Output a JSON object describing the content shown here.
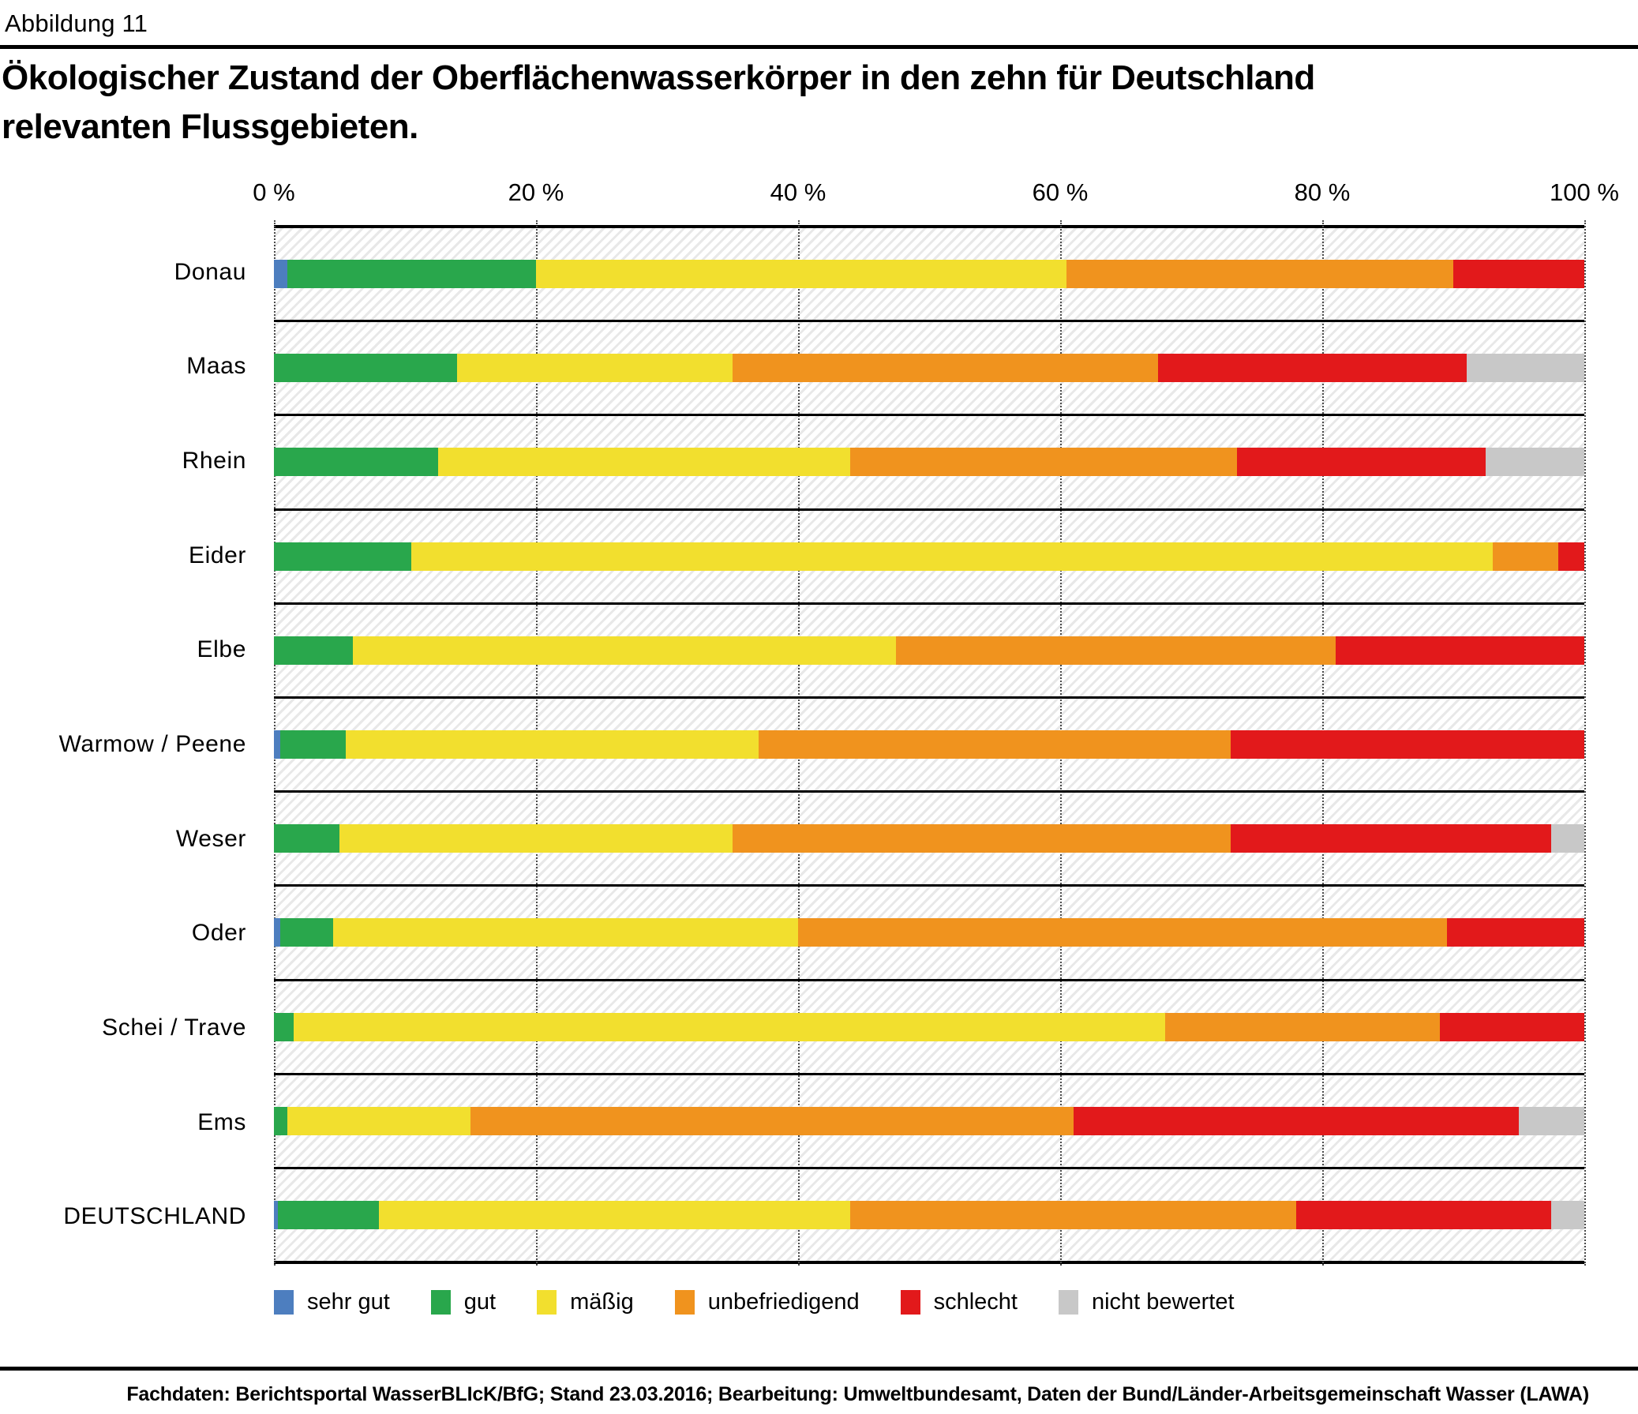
{
  "figure_label": "Abbildung 11",
  "title_line1": "Ökologischer Zustand der Oberflächenwasserkörper in den zehn für Deutschland",
  "title_line2": "relevanten Flussgebieten.",
  "footer": "Fachdaten: Berichtsportal WasserBLIcK/BfG; Stand 23.03.2016; Bearbeitung: Umweltbundesamt, Daten der Bund/Länder-Arbeitsgemeinschaft Wasser (LAWA)",
  "chart_data": {
    "type": "bar",
    "orientation": "horizontal-stacked",
    "unit": "%",
    "xlim": [
      0,
      100
    ],
    "x_ticks": [
      0,
      20,
      40,
      60,
      80,
      100
    ],
    "x_tick_labels": [
      "0 %",
      "20 %",
      "40 %",
      "60 %",
      "80 %",
      "100 %"
    ],
    "grid": "dotted-vertical",
    "legend_position": "bottom",
    "categories": [
      "Donau",
      "Maas",
      "Rhein",
      "Eider",
      "Elbe",
      "Warmow / Peene",
      "Weser",
      "Oder",
      "Schei / Trave",
      "Ems",
      "DEUTSCHLAND"
    ],
    "series": [
      {
        "name": "sehr gut",
        "color": "#4d7ebf",
        "values": [
          1,
          0,
          0,
          0,
          0,
          0.5,
          0,
          0.5,
          0,
          0,
          0.3
        ]
      },
      {
        "name": "gut",
        "color": "#29a74c",
        "values": [
          19,
          14,
          12.5,
          10.5,
          6,
          5,
          5,
          4,
          1.5,
          1,
          7.7
        ]
      },
      {
        "name": "mäßig",
        "color": "#f2df2e",
        "values": [
          40.5,
          21,
          31.5,
          82.5,
          41.5,
          31.5,
          30,
          35.5,
          66.5,
          14,
          36
        ]
      },
      {
        "name": "unbefriedigend",
        "color": "#f0931e",
        "values": [
          29.5,
          32.5,
          29.5,
          5,
          33.5,
          36,
          38,
          49.5,
          21,
          46,
          34
        ]
      },
      {
        "name": "schlecht",
        "color": "#e2191b",
        "values": [
          10,
          23.5,
          19,
          2,
          19,
          27,
          24.5,
          10.5,
          11,
          34,
          19.5
        ]
      },
      {
        "name": "nicht bewertet",
        "color": "#c8c8c8",
        "values": [
          0,
          9,
          7.5,
          0,
          0,
          0,
          2.5,
          0,
          0,
          5,
          2.5
        ]
      }
    ]
  }
}
